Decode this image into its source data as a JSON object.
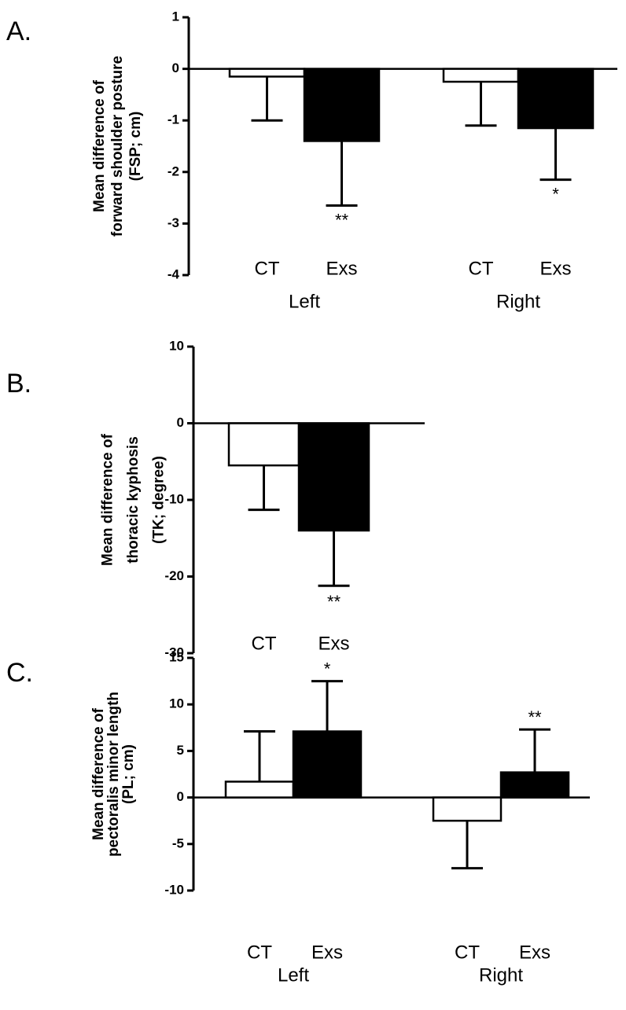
{
  "chart_data": [
    {
      "type": "grouped_bar",
      "panel": "A.",
      "ylabel": [
        "Mean difference of",
        "forward shoulder posture",
        "(FSP; cm)"
      ],
      "categories": [
        "Left",
        "Right"
      ],
      "series": [
        {
          "name": "CT",
          "color": "#ffffff",
          "values": [
            -0.15,
            -0.25
          ],
          "errors": [
            0.85,
            0.85
          ]
        },
        {
          "name": "Exs",
          "color": "#000000",
          "values": [
            -1.4,
            -1.15
          ],
          "errors": [
            1.25,
            1.0
          ],
          "annotations": [
            "**",
            "*"
          ]
        }
      ],
      "ylim": [
        -4,
        1
      ],
      "yticks": [
        1,
        0,
        -1,
        -2,
        -3,
        -4
      ]
    },
    {
      "type": "bar",
      "panel": "B.",
      "ylabel": [
        "Mean difference of",
        "thoracic kyphosis",
        "(TK; degree)"
      ],
      "categories": [
        "CT",
        "Exs"
      ],
      "values": [
        -5.5,
        -14
      ],
      "errors": [
        5.8,
        7.2
      ],
      "colors": [
        "#ffffff",
        "#000000"
      ],
      "annotations": [
        null,
        "**"
      ],
      "ylim": [
        -30,
        10
      ],
      "yticks": [
        10,
        0,
        -10,
        -20,
        -30
      ]
    },
    {
      "type": "grouped_bar",
      "panel": "C.",
      "ylabel": [
        "Mean difference of",
        "pectoralis minor length",
        "(PL; cm)"
      ],
      "categories": [
        "Left",
        "Right"
      ],
      "series": [
        {
          "name": "CT",
          "color": "#ffffff",
          "values": [
            1.7,
            -2.5
          ],
          "errors": [
            5.4,
            5.1
          ]
        },
        {
          "name": "Exs",
          "color": "#000000",
          "values": [
            7.1,
            2.7
          ],
          "errors": [
            5.4,
            4.6
          ],
          "annotations": [
            "*",
            "**"
          ]
        }
      ],
      "ylim": [
        -10,
        15
      ],
      "yticks": [
        15,
        10,
        5,
        0,
        -5,
        -10
      ]
    }
  ]
}
